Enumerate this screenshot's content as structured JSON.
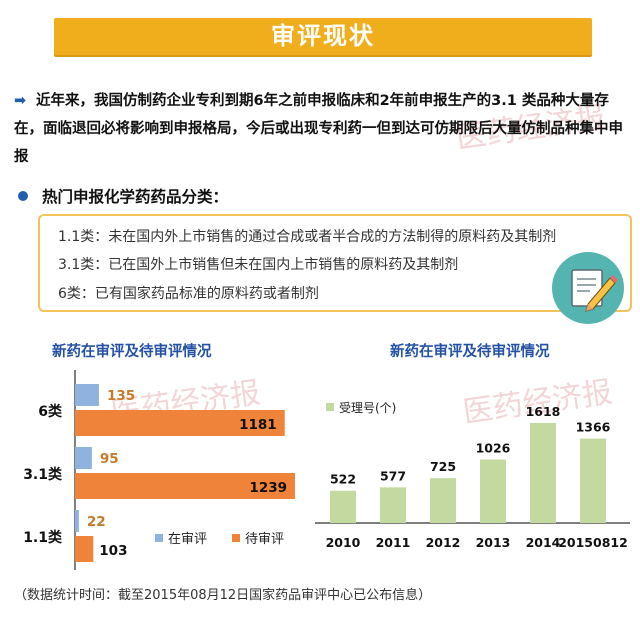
{
  "header": {
    "title": "审评现状"
  },
  "intro": {
    "text": "近年来，我国仿制药企业专利到期6年之前申报临床和2年前申报生产的3.1  类品种大量存在，面临退回必将影响到申报格局，今后或出现专利药一但到达可仿期限后大量仿制品种集中申报"
  },
  "hot": {
    "title": "热门申报化学药药品分类：",
    "items": [
      "1.1类：未在国内外上市销售的通过合成或者半合成的方法制得的原料药及其制剂",
      "3.1类：已在国外上市销售但未在国内上市销售的原料药及其制剂",
      "6类：已有国家药品标准的原料药或者制剂"
    ]
  },
  "watermark": {
    "text": "医药经济报"
  },
  "colors": {
    "title_bg": "#f1ae1c",
    "blue_bar": "#8fb3de",
    "orange_bar": "#f0833a",
    "green_bar": "#c4d9a0",
    "chart_title": "#2451a3",
    "box_border": "#f3c25a"
  },
  "chart_data": [
    {
      "type": "bar",
      "orientation": "horizontal",
      "title": "新药在审评及待审评情况",
      "categories": [
        "6类",
        "3.1类",
        "1.1类"
      ],
      "series": [
        {
          "name": "在审评",
          "values": [
            135,
            95,
            22
          ],
          "color": "#8fb3de"
        },
        {
          "name": "待审评",
          "values": [
            1181,
            1239,
            103
          ],
          "color": "#f0833a"
        }
      ],
      "legend": "bottom-right"
    },
    {
      "type": "bar",
      "title": "新药在审评及待审评情况",
      "categories": [
        "2010",
        "2011",
        "2012",
        "2013",
        "2014",
        "20150812"
      ],
      "series": [
        {
          "name": "受理号(个)",
          "values": [
            522,
            577,
            725,
            1026,
            1618,
            1366
          ],
          "color": "#c4d9a0"
        }
      ],
      "legend": "top-left"
    }
  ],
  "footer": {
    "text": "（数据统计时间：截至2015年08月12日国家药品审评中心已公布信息）"
  }
}
